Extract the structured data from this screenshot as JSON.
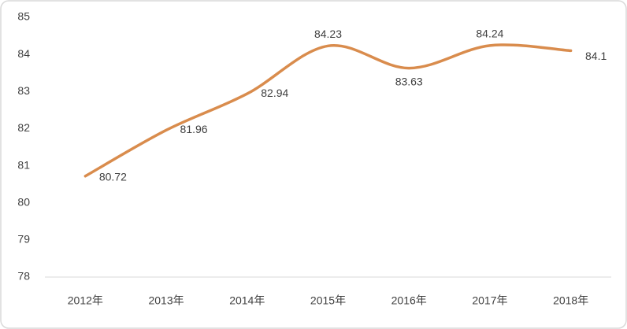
{
  "chart_data": {
    "type": "line",
    "categories": [
      "2012年",
      "2013年",
      "2014年",
      "2015年",
      "2016年",
      "2017年",
      "2018年"
    ],
    "series": [
      {
        "color": "#d98c4d",
        "values": [
          80.72,
          81.96,
          82.94,
          84.23,
          83.63,
          84.24,
          84.1
        ]
      }
    ],
    "ylim": [
      78,
      85
    ],
    "yticks": [
      78,
      79,
      80,
      81,
      82,
      83,
      84,
      85
    ],
    "grid": false,
    "smooth": true
  }
}
